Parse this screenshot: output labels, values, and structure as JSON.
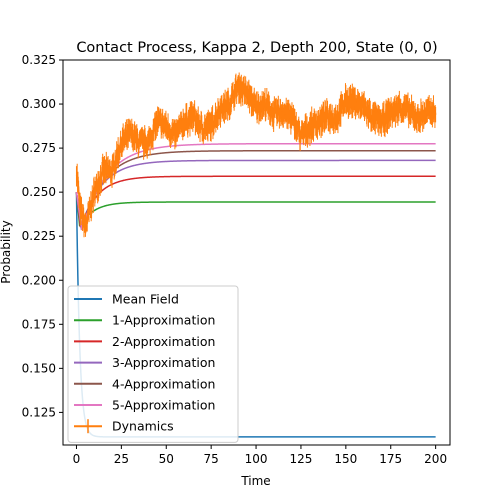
{
  "chart_data": {
    "type": "line",
    "title": "Contact Process, Kappa 2, Depth 200, State (0, 0)",
    "xlabel": "Time",
    "ylabel": "Probability",
    "xlim": [
      -7.5,
      208
    ],
    "ylim": [
      0.1065,
      0.325
    ],
    "xticks": [
      0,
      25,
      50,
      75,
      100,
      125,
      150,
      175,
      200
    ],
    "yticks": [
      0.125,
      0.15,
      0.175,
      0.2,
      0.225,
      0.25,
      0.275,
      0.3,
      0.325
    ],
    "x_range": [
      0,
      200
    ],
    "legend_position": "lower left",
    "grid": false,
    "series": [
      {
        "name": "Mean Field",
        "color": "#1f77b4",
        "start": 0.25,
        "dip": 0.25,
        "plateau": 0.1111,
        "t_dip": 0.0,
        "rise_rate": 0.55,
        "style": "line"
      },
      {
        "name": "1-Approximation",
        "color": "#2ca02c",
        "start": 0.25,
        "dip": 0.2305,
        "plateau": 0.2444,
        "t_dip": 1.8,
        "rise_rate": 0.13,
        "style": "line"
      },
      {
        "name": "2-Approximation",
        "color": "#d62728",
        "start": 0.25,
        "dip": 0.23,
        "plateau": 0.259,
        "t_dip": 2.2,
        "rise_rate": 0.105,
        "style": "line"
      },
      {
        "name": "3-Approximation",
        "color": "#9467bd",
        "start": 0.25,
        "dip": 0.2295,
        "plateau": 0.268,
        "t_dip": 2.6,
        "rise_rate": 0.088,
        "style": "line"
      },
      {
        "name": "4-Approximation",
        "color": "#8c564b",
        "start": 0.25,
        "dip": 0.229,
        "plateau": 0.2735,
        "t_dip": 2.8,
        "rise_rate": 0.078,
        "style": "line"
      },
      {
        "name": "5-Approximation",
        "color": "#e377c2",
        "start": 0.25,
        "dip": 0.2285,
        "plateau": 0.2775,
        "t_dip": 3.0,
        "rise_rate": 0.072,
        "style": "line"
      },
      {
        "name": "Dynamics",
        "color": "#ff7f0e",
        "style": "errorbar",
        "x": [
          0,
          2,
          5,
          10,
          15,
          20,
          25,
          30,
          35,
          40,
          45,
          50,
          55,
          60,
          65,
          70,
          75,
          80,
          85,
          90,
          95,
          100,
          105,
          110,
          115,
          120,
          125,
          130,
          135,
          140,
          145,
          150,
          155,
          160,
          165,
          170,
          175,
          180,
          185,
          190,
          195,
          200
        ],
        "y": [
          0.264,
          0.24,
          0.23,
          0.25,
          0.262,
          0.262,
          0.278,
          0.283,
          0.278,
          0.278,
          0.29,
          0.287,
          0.282,
          0.29,
          0.293,
          0.286,
          0.288,
          0.297,
          0.3,
          0.31,
          0.306,
          0.298,
          0.3,
          0.294,
          0.296,
          0.292,
          0.282,
          0.287,
          0.29,
          0.293,
          0.292,
          0.302,
          0.301,
          0.298,
          0.292,
          0.29,
          0.295,
          0.298,
          0.296,
          0.292,
          0.295,
          0.296
        ],
        "noise_amplitude": 0.005
      }
    ]
  }
}
